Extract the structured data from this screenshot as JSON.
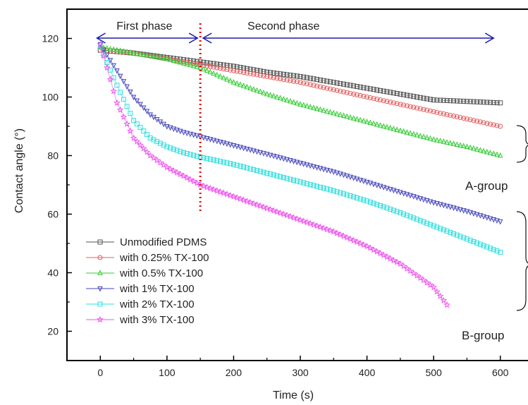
{
  "chart_data": {
    "type": "scatter",
    "xlabel": "Time (s)",
    "ylabel": "Contact angle (°)",
    "xlim": [
      -50,
      650
    ],
    "ylim": [
      10,
      130
    ],
    "x_ticks": [
      0,
      100,
      200,
      300,
      400,
      500,
      600
    ],
    "y_ticks": [
      20,
      40,
      60,
      80,
      100,
      120
    ],
    "grid": false,
    "legend_position": "bottom-left",
    "series": [
      {
        "name": "Unmodified PDMS",
        "marker": "square",
        "color": "#555555",
        "x": [
          0,
          50,
          100,
          150,
          200,
          250,
          300,
          350,
          400,
          450,
          500,
          550,
          600
        ],
        "y": [
          116,
          115,
          113.5,
          112,
          110.5,
          108.5,
          107,
          105,
          103,
          101,
          99,
          98.5,
          98
        ]
      },
      {
        "name": "with 0.25% TX-100",
        "marker": "circle",
        "color": "#e35d5d",
        "x": [
          0,
          50,
          100,
          150,
          200,
          250,
          300,
          350,
          400,
          450,
          500,
          550,
          600
        ],
        "y": [
          116,
          115,
          113,
          111,
          109,
          107,
          105,
          102.5,
          100,
          97.5,
          95,
          92.5,
          90
        ]
      },
      {
        "name": "with 0.5% TX-100",
        "marker": "triangle-up",
        "color": "#33cc33",
        "x": [
          0,
          50,
          100,
          150,
          200,
          250,
          300,
          350,
          400,
          450,
          500,
          550,
          600
        ],
        "y": [
          117,
          115,
          113,
          110,
          105,
          101,
          97.5,
          94.5,
          91.5,
          88.5,
          85.5,
          83,
          80
        ]
      },
      {
        "name": "with 1% TX-100",
        "marker": "triangle-down",
        "color": "#4444bb",
        "x": [
          0,
          25,
          50,
          75,
          100,
          125,
          150,
          200,
          250,
          300,
          350,
          400,
          450,
          500,
          550,
          600
        ],
        "y": [
          118,
          109,
          100,
          94,
          90,
          88,
          86.5,
          83.5,
          80.5,
          77.5,
          74.5,
          71,
          67.5,
          64,
          61,
          57.5
        ]
      },
      {
        "name": "with 2% TX-100",
        "marker": "square",
        "color": "#33dddd",
        "x": [
          0,
          25,
          50,
          75,
          100,
          125,
          150,
          200,
          250,
          300,
          350,
          400,
          450,
          500,
          550,
          600
        ],
        "y": [
          117,
          104,
          92,
          86,
          83,
          81,
          79.5,
          77,
          74,
          71,
          68,
          64.5,
          60.5,
          56,
          51.5,
          47
        ]
      },
      {
        "name": "with 3% TX-100",
        "marker": "star",
        "color": "#ee55ee",
        "x": [
          0,
          25,
          50,
          75,
          100,
          125,
          150,
          200,
          250,
          300,
          350,
          400,
          450,
          500,
          520
        ],
        "y": [
          118,
          98,
          86,
          80,
          76,
          73,
          70,
          66,
          62,
          58,
          54,
          49,
          43,
          35,
          29
        ]
      }
    ],
    "annotations": {
      "divider_x": 150,
      "first_phase": {
        "label": "First phase",
        "x_from": -5,
        "x_to": 150
      },
      "second_phase": {
        "label": "Second phase",
        "x_from": 150,
        "x_to": 590
      },
      "group_a": "A-group",
      "group_b": "B-group"
    }
  }
}
